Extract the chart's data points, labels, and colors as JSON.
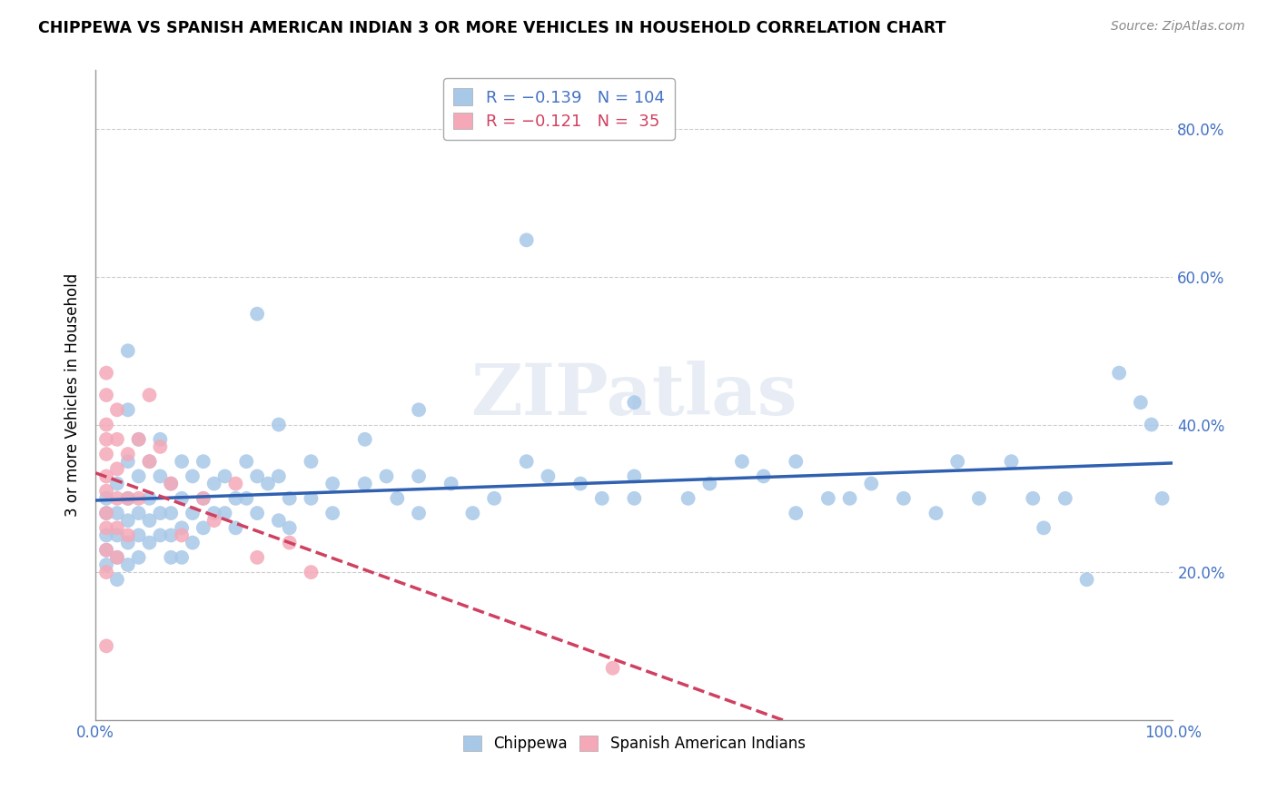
{
  "title": "CHIPPEWA VS SPANISH AMERICAN INDIAN 3 OR MORE VEHICLES IN HOUSEHOLD CORRELATION CHART",
  "source": "Source: ZipAtlas.com",
  "ylabel": "3 or more Vehicles in Household",
  "yticks": [
    "20.0%",
    "40.0%",
    "60.0%",
    "80.0%"
  ],
  "ytick_vals": [
    0.2,
    0.4,
    0.6,
    0.8
  ],
  "chippewa_color": "#a8c8e8",
  "spanish_color": "#f4a8b8",
  "chippewa_line_color": "#3060b0",
  "spanish_line_color": "#d04060",
  "watermark": "ZIPatlas",
  "chippewa_points": [
    [
      0.01,
      0.3
    ],
    [
      0.01,
      0.28
    ],
    [
      0.01,
      0.25
    ],
    [
      0.01,
      0.23
    ],
    [
      0.01,
      0.21
    ],
    [
      0.02,
      0.32
    ],
    [
      0.02,
      0.28
    ],
    [
      0.02,
      0.25
    ],
    [
      0.02,
      0.22
    ],
    [
      0.02,
      0.19
    ],
    [
      0.03,
      0.5
    ],
    [
      0.03,
      0.42
    ],
    [
      0.03,
      0.35
    ],
    [
      0.03,
      0.3
    ],
    [
      0.03,
      0.27
    ],
    [
      0.03,
      0.24
    ],
    [
      0.03,
      0.21
    ],
    [
      0.04,
      0.38
    ],
    [
      0.04,
      0.33
    ],
    [
      0.04,
      0.28
    ],
    [
      0.04,
      0.25
    ],
    [
      0.04,
      0.22
    ],
    [
      0.05,
      0.35
    ],
    [
      0.05,
      0.3
    ],
    [
      0.05,
      0.27
    ],
    [
      0.05,
      0.24
    ],
    [
      0.06,
      0.38
    ],
    [
      0.06,
      0.33
    ],
    [
      0.06,
      0.28
    ],
    [
      0.06,
      0.25
    ],
    [
      0.07,
      0.32
    ],
    [
      0.07,
      0.28
    ],
    [
      0.07,
      0.25
    ],
    [
      0.07,
      0.22
    ],
    [
      0.08,
      0.35
    ],
    [
      0.08,
      0.3
    ],
    [
      0.08,
      0.26
    ],
    [
      0.08,
      0.22
    ],
    [
      0.09,
      0.33
    ],
    [
      0.09,
      0.28
    ],
    [
      0.09,
      0.24
    ],
    [
      0.1,
      0.35
    ],
    [
      0.1,
      0.3
    ],
    [
      0.1,
      0.26
    ],
    [
      0.11,
      0.32
    ],
    [
      0.11,
      0.28
    ],
    [
      0.12,
      0.33
    ],
    [
      0.12,
      0.28
    ],
    [
      0.13,
      0.3
    ],
    [
      0.13,
      0.26
    ],
    [
      0.14,
      0.35
    ],
    [
      0.14,
      0.3
    ],
    [
      0.15,
      0.55
    ],
    [
      0.15,
      0.33
    ],
    [
      0.15,
      0.28
    ],
    [
      0.16,
      0.32
    ],
    [
      0.17,
      0.4
    ],
    [
      0.17,
      0.33
    ],
    [
      0.17,
      0.27
    ],
    [
      0.18,
      0.3
    ],
    [
      0.18,
      0.26
    ],
    [
      0.2,
      0.35
    ],
    [
      0.2,
      0.3
    ],
    [
      0.22,
      0.32
    ],
    [
      0.22,
      0.28
    ],
    [
      0.25,
      0.38
    ],
    [
      0.25,
      0.32
    ],
    [
      0.27,
      0.33
    ],
    [
      0.28,
      0.3
    ],
    [
      0.3,
      0.42
    ],
    [
      0.3,
      0.33
    ],
    [
      0.3,
      0.28
    ],
    [
      0.33,
      0.32
    ],
    [
      0.35,
      0.28
    ],
    [
      0.37,
      0.3
    ],
    [
      0.4,
      0.65
    ],
    [
      0.4,
      0.35
    ],
    [
      0.42,
      0.33
    ],
    [
      0.45,
      0.32
    ],
    [
      0.47,
      0.3
    ],
    [
      0.5,
      0.43
    ],
    [
      0.5,
      0.33
    ],
    [
      0.5,
      0.3
    ],
    [
      0.55,
      0.3
    ],
    [
      0.57,
      0.32
    ],
    [
      0.6,
      0.35
    ],
    [
      0.62,
      0.33
    ],
    [
      0.65,
      0.35
    ],
    [
      0.65,
      0.28
    ],
    [
      0.68,
      0.3
    ],
    [
      0.7,
      0.3
    ],
    [
      0.72,
      0.32
    ],
    [
      0.75,
      0.3
    ],
    [
      0.78,
      0.28
    ],
    [
      0.8,
      0.35
    ],
    [
      0.82,
      0.3
    ],
    [
      0.85,
      0.35
    ],
    [
      0.87,
      0.3
    ],
    [
      0.88,
      0.26
    ],
    [
      0.9,
      0.3
    ],
    [
      0.92,
      0.19
    ],
    [
      0.95,
      0.47
    ],
    [
      0.97,
      0.43
    ],
    [
      0.98,
      0.4
    ],
    [
      0.99,
      0.3
    ]
  ],
  "spanish_points": [
    [
      0.01,
      0.47
    ],
    [
      0.01,
      0.44
    ],
    [
      0.01,
      0.4
    ],
    [
      0.01,
      0.38
    ],
    [
      0.01,
      0.36
    ],
    [
      0.01,
      0.33
    ],
    [
      0.01,
      0.31
    ],
    [
      0.01,
      0.28
    ],
    [
      0.01,
      0.26
    ],
    [
      0.01,
      0.23
    ],
    [
      0.01,
      0.2
    ],
    [
      0.02,
      0.42
    ],
    [
      0.02,
      0.38
    ],
    [
      0.02,
      0.34
    ],
    [
      0.02,
      0.3
    ],
    [
      0.02,
      0.26
    ],
    [
      0.02,
      0.22
    ],
    [
      0.03,
      0.36
    ],
    [
      0.03,
      0.3
    ],
    [
      0.03,
      0.25
    ],
    [
      0.04,
      0.38
    ],
    [
      0.04,
      0.3
    ],
    [
      0.05,
      0.44
    ],
    [
      0.05,
      0.35
    ],
    [
      0.06,
      0.37
    ],
    [
      0.07,
      0.32
    ],
    [
      0.08,
      0.25
    ],
    [
      0.1,
      0.3
    ],
    [
      0.11,
      0.27
    ],
    [
      0.13,
      0.32
    ],
    [
      0.15,
      0.22
    ],
    [
      0.18,
      0.24
    ],
    [
      0.2,
      0.2
    ],
    [
      0.48,
      0.07
    ],
    [
      0.01,
      0.1
    ]
  ]
}
